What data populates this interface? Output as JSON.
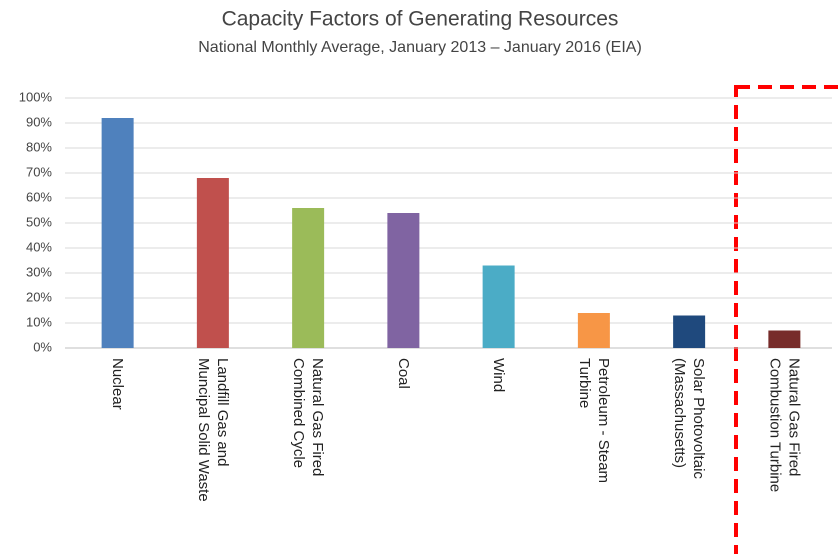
{
  "chart_data": {
    "type": "bar",
    "title": "Capacity Factors of Generating Resources",
    "subtitle": "National Monthly Average, January 2013 – January 2016 (EIA)",
    "categories": [
      "Nuclear",
      "Landfill Gas and\nMuncipal Solid Waste",
      "Natural Gas Fired\nCombined Cycle",
      "Coal",
      "Wind",
      "Petroleum - Steam\nTurbine",
      "Solar Photovoltaic\n(Massachusetts)",
      "Natural Gas Fired\nCombustion Turbine"
    ],
    "values": [
      92,
      68,
      56,
      54,
      33,
      14,
      13,
      7
    ],
    "colors": [
      "#4f81bd",
      "#c0504d",
      "#9bbb59",
      "#8064a2",
      "#4bacc6",
      "#f79646",
      "#1f497d",
      "#772c2a"
    ],
    "ylim": [
      0,
      100
    ],
    "yticks": [
      {
        "value": 0,
        "label": "0%"
      },
      {
        "value": 10,
        "label": "10%"
      },
      {
        "value": 20,
        "label": "20%"
      },
      {
        "value": 30,
        "label": "30%"
      },
      {
        "value": 40,
        "label": "40%"
      },
      {
        "value": 50,
        "label": "50%"
      },
      {
        "value": 60,
        "label": "60%"
      },
      {
        "value": 70,
        "label": "70%"
      },
      {
        "value": 80,
        "label": "80%"
      },
      {
        "value": 90,
        "label": "90%"
      },
      {
        "value": 100,
        "label": "100%"
      }
    ],
    "grid": true
  }
}
